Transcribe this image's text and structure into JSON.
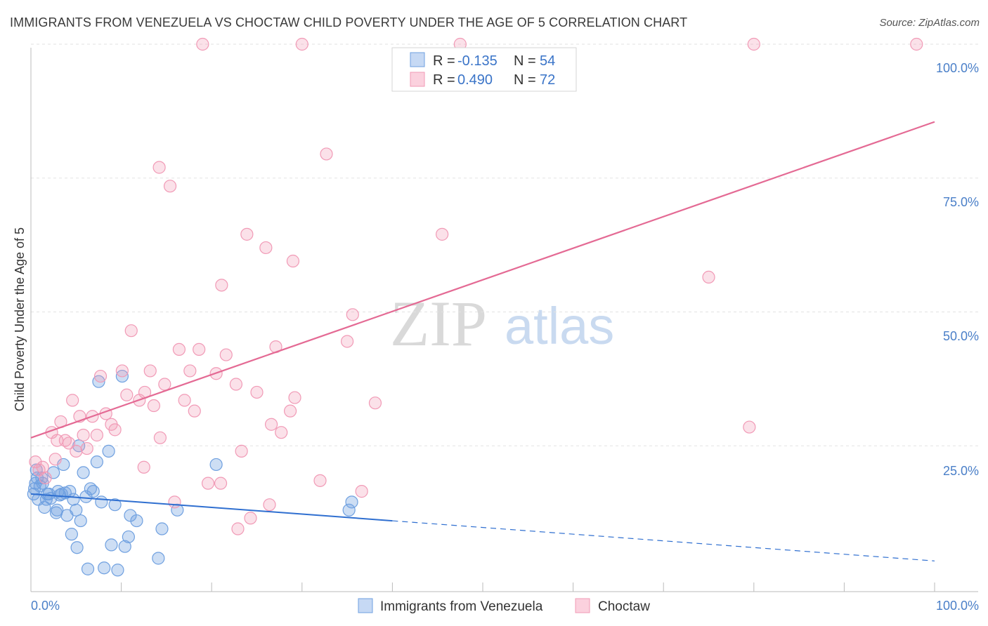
{
  "title": "IMMIGRANTS FROM VENEZUELA VS CHOCTAW CHILD POVERTY UNDER THE AGE OF 5 CORRELATION CHART",
  "source": "Source: ZipAtlas.com",
  "colors": {
    "blue": "#6fa0e0",
    "blue_line": "#2f6fd0",
    "pink": "#f19ab6",
    "pink_line": "#e46a94",
    "tick": "#4a7fc8"
  },
  "legend": {
    "r_label": "R =",
    "n_label": "N =",
    "blue": {
      "r": "-0.135",
      "n": "54"
    },
    "pink": {
      "r": "0.490",
      "n": "72"
    }
  },
  "watermark": {
    "zip": "ZIP",
    "atlas": "atlas"
  },
  "chart_data": {
    "type": "scatter",
    "title": "IMMIGRANTS FROM VENEZUELA VS CHOCTAW CHILD POVERTY UNDER THE AGE OF 5 CORRELATION CHART",
    "xlabel": "",
    "ylabel": "Child Poverty Under the Age of 5",
    "xlim": [
      0,
      100
    ],
    "ylim": [
      0,
      100
    ],
    "x_tick_labels": [
      "0.0%",
      "100.0%"
    ],
    "y_tick_labels": [
      "25.0%",
      "50.0%",
      "75.0%",
      "100.0%"
    ],
    "y_ticks": [
      25,
      50,
      75,
      100
    ],
    "series": [
      {
        "name": "Immigrants from Venezuela",
        "color": "#6fa0e0",
        "trend": {
          "x0": 0,
          "y0": 16.0,
          "x1": 40,
          "y1": 11.0,
          "dashed_to_x": 100,
          "dashed_to_y": 3.5
        },
        "points": [
          [
            0.3,
            16.0
          ],
          [
            0.5,
            18.0
          ],
          [
            0.6,
            20.5
          ],
          [
            0.8,
            15.0
          ],
          [
            1.0,
            17.5
          ],
          [
            1.2,
            19.0
          ],
          [
            1.5,
            13.5
          ],
          [
            1.7,
            15.0
          ],
          [
            2.0,
            16.0
          ],
          [
            2.2,
            15.2
          ],
          [
            2.5,
            20.0
          ],
          [
            2.8,
            12.5
          ],
          [
            3.0,
            16.5
          ],
          [
            3.2,
            15.8
          ],
          [
            3.6,
            21.5
          ],
          [
            3.8,
            16.2
          ],
          [
            4.0,
            12.0
          ],
          [
            4.3,
            16.5
          ],
          [
            4.7,
            15.0
          ],
          [
            5.0,
            13.0
          ],
          [
            5.3,
            25.0
          ],
          [
            5.5,
            11.0
          ],
          [
            5.8,
            20.0
          ],
          [
            6.1,
            15.5
          ],
          [
            6.3,
            2.0
          ],
          [
            6.6,
            17.0
          ],
          [
            6.9,
            16.5
          ],
          [
            7.3,
            22.0
          ],
          [
            7.5,
            37.0
          ],
          [
            7.8,
            14.5
          ],
          [
            8.1,
            2.2
          ],
          [
            8.6,
            24.0
          ],
          [
            8.9,
            6.5
          ],
          [
            9.3,
            14.0
          ],
          [
            9.6,
            1.8
          ],
          [
            10.1,
            38.0
          ],
          [
            10.4,
            6.2
          ],
          [
            10.8,
            8.0
          ],
          [
            11.0,
            12.0
          ],
          [
            11.7,
            11.0
          ],
          [
            14.1,
            4.0
          ],
          [
            14.5,
            9.5
          ],
          [
            16.2,
            13.0
          ],
          [
            20.5,
            21.5
          ],
          [
            35.2,
            13.0
          ],
          [
            35.5,
            14.5
          ],
          [
            0.7,
            19.0
          ],
          [
            1.3,
            18.0
          ],
          [
            2.9,
            13.0
          ],
          [
            0.4,
            17.0
          ],
          [
            5.1,
            6.0
          ],
          [
            4.5,
            8.5
          ],
          [
            1.8,
            16.0
          ],
          [
            3.4,
            16.0
          ]
        ]
      },
      {
        "name": "Choctaw",
        "color": "#f19ab6",
        "trend": {
          "x0": 0,
          "y0": 26.5,
          "x1": 100,
          "y1": 85.5
        },
        "points": [
          [
            0.5,
            22.0
          ],
          [
            0.9,
            20.5
          ],
          [
            1.3,
            21.0
          ],
          [
            1.6,
            19.0
          ],
          [
            2.3,
            27.5
          ],
          [
            2.7,
            22.5
          ],
          [
            3.3,
            29.5
          ],
          [
            3.8,
            26.0
          ],
          [
            4.2,
            25.5
          ],
          [
            4.6,
            33.5
          ],
          [
            5.0,
            24.0
          ],
          [
            5.4,
            30.5
          ],
          [
            5.8,
            27.0
          ],
          [
            6.2,
            24.5
          ],
          [
            6.8,
            30.5
          ],
          [
            7.3,
            27.0
          ],
          [
            7.7,
            38.0
          ],
          [
            8.3,
            31.0
          ],
          [
            8.9,
            29.0
          ],
          [
            9.3,
            28.0
          ],
          [
            10.1,
            39.0
          ],
          [
            10.6,
            34.5
          ],
          [
            11.1,
            46.5
          ],
          [
            12.0,
            33.5
          ],
          [
            12.6,
            35.0
          ],
          [
            13.2,
            39.0
          ],
          [
            13.6,
            32.5
          ],
          [
            14.3,
            26.5
          ],
          [
            14.8,
            36.5
          ],
          [
            15.4,
            73.5
          ],
          [
            16.4,
            43.0
          ],
          [
            17.0,
            33.5
          ],
          [
            17.6,
            39.0
          ],
          [
            18.1,
            31.5
          ],
          [
            18.6,
            43.0
          ],
          [
            19.6,
            18.0
          ],
          [
            20.5,
            38.5
          ],
          [
            21.1,
            55.0
          ],
          [
            21.6,
            42.0
          ],
          [
            22.7,
            36.5
          ],
          [
            23.3,
            24.0
          ],
          [
            23.9,
            64.5
          ],
          [
            24.3,
            11.5
          ],
          [
            25.0,
            35.0
          ],
          [
            26.0,
            62.0
          ],
          [
            26.6,
            29.0
          ],
          [
            27.1,
            43.5
          ],
          [
            27.7,
            27.5
          ],
          [
            28.7,
            31.5
          ],
          [
            29.2,
            34.0
          ],
          [
            30.0,
            100.0
          ],
          [
            32.7,
            79.5
          ],
          [
            35.0,
            44.5
          ],
          [
            35.6,
            49.5
          ],
          [
            36.6,
            16.5
          ],
          [
            38.1,
            33.0
          ],
          [
            45.5,
            64.5
          ],
          [
            47.5,
            100.0
          ],
          [
            75.0,
            56.5
          ],
          [
            79.5,
            28.5
          ],
          [
            80.0,
            100.0
          ],
          [
            98.0,
            100.0
          ],
          [
            19.0,
            100.0
          ],
          [
            14.2,
            77.0
          ],
          [
            22.9,
            9.5
          ],
          [
            26.4,
            14.0
          ],
          [
            32.0,
            18.5
          ],
          [
            21.0,
            18.0
          ],
          [
            29.0,
            59.5
          ],
          [
            12.5,
            21.0
          ],
          [
            15.9,
            14.5
          ],
          [
            2.9,
            26.0
          ]
        ]
      }
    ]
  },
  "bottom_legend": {
    "blue_label": "Immigrants from Venezuela",
    "pink_label": "Choctaw"
  }
}
